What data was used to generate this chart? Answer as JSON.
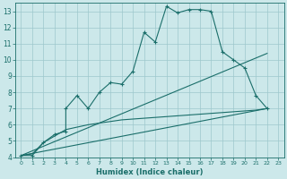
{
  "bg_color": "#cce8ea",
  "grid_color": "#9ec8cc",
  "line_color": "#1a6e6a",
  "xlabel": "Humidex (Indice chaleur)",
  "xlim": [
    -0.5,
    23.5
  ],
  "ylim": [
    4,
    13.5
  ],
  "yticks": [
    4,
    5,
    6,
    7,
    8,
    9,
    10,
    11,
    12,
    13
  ],
  "xticks": [
    0,
    1,
    2,
    3,
    4,
    5,
    6,
    7,
    8,
    9,
    10,
    11,
    12,
    13,
    14,
    15,
    16,
    17,
    18,
    19,
    20,
    21,
    22,
    23
  ],
  "line1_x": [
    0,
    1,
    2,
    3,
    4,
    4,
    5,
    6,
    7,
    8,
    9,
    10,
    11,
    12,
    13,
    14,
    15,
    16,
    17,
    18,
    19,
    20,
    21,
    22
  ],
  "line1_y": [
    4.1,
    4.1,
    4.9,
    5.4,
    5.6,
    7.0,
    7.8,
    7.0,
    8.0,
    8.6,
    8.5,
    9.3,
    11.7,
    11.1,
    13.3,
    12.9,
    13.1,
    13.1,
    13.0,
    10.5,
    10.0,
    9.5,
    7.8,
    7.0
  ],
  "line2_x": [
    0,
    22
  ],
  "line2_y": [
    4.1,
    10.4
  ],
  "line3_x": [
    0,
    22
  ],
  "line3_y": [
    4.1,
    7.0
  ],
  "line4_x": [
    0,
    1,
    2,
    3,
    4,
    5,
    6,
    7,
    8,
    9,
    10,
    11,
    12,
    13,
    14,
    15,
    16,
    17,
    18,
    19,
    20,
    21,
    22
  ],
  "line4_y": [
    4.1,
    4.2,
    4.9,
    5.3,
    5.7,
    5.85,
    6.0,
    6.1,
    6.2,
    6.3,
    6.35,
    6.4,
    6.45,
    6.5,
    6.55,
    6.6,
    6.65,
    6.7,
    6.75,
    6.8,
    6.85,
    6.9,
    7.0
  ]
}
